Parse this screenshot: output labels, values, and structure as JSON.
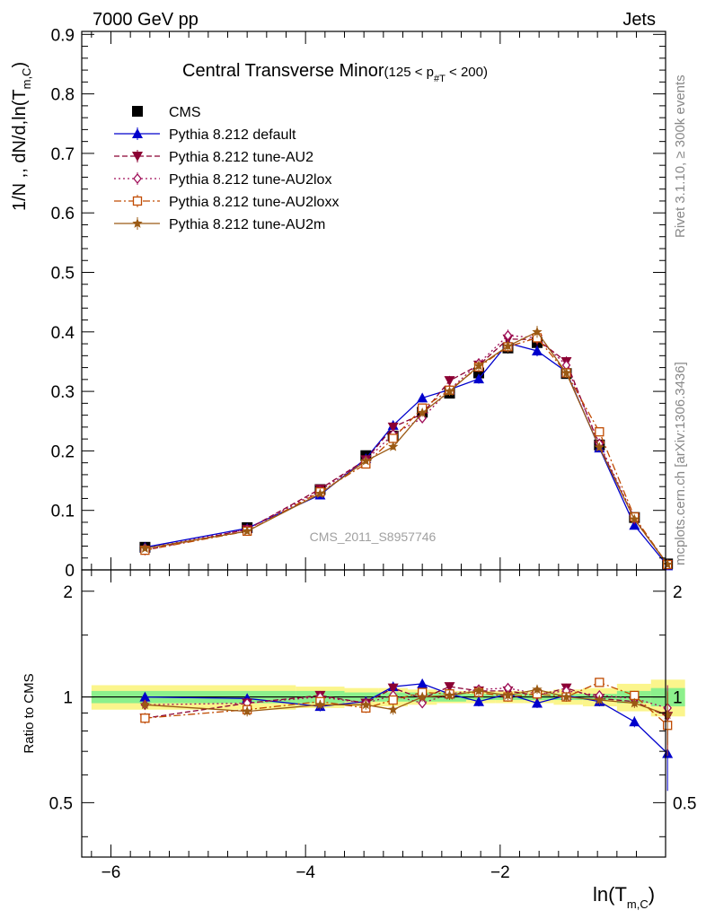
{
  "header": {
    "left": "7000 GeV pp",
    "right": "Jets"
  },
  "side_text": {
    "rivet": "Rivet 3.1.10, ≥ 300k events",
    "mcplots": "mcplots.cern.ch [arXiv:1306.3436]"
  },
  "watermark": "CMS_2011_S8957746",
  "colors": {
    "cms": "#000000",
    "default": "#0000cc",
    "au2": "#8b0033",
    "au2lox": "#a0105a",
    "au2loxx": "#c04a00",
    "au2m": "#9b5a14",
    "band_inner": "#8cf08c",
    "band_outer": "#fbf58c"
  },
  "chart_data": [
    {
      "type": "line",
      "title": "Central Transverse Minor",
      "title_cut": "(125 < p",
      "title_cut_sub": "#T",
      "title_cut_end": " < 200)",
      "ylabel": "1/N ,, dN/d,ln(T",
      "ylabel_sub": "m,C",
      "ylabel_end": ")",
      "xlim": [
        -6.3,
        -0.3
      ],
      "ylim": [
        0,
        0.905
      ],
      "yticks": [
        "0",
        "0.1",
        "0.2",
        "0.3",
        "0.4",
        "0.5",
        "0.6",
        "0.7",
        "0.8",
        "0.9"
      ],
      "x": [
        -5.65,
        -4.6,
        -3.85,
        -3.38,
        -3.1,
        -2.8,
        -2.52,
        -2.22,
        -1.92,
        -1.62,
        -1.32,
        -0.98,
        -0.62,
        -0.28
      ],
      "series": [
        {
          "name": "CMS",
          "style": "cms",
          "values": [
            0.038,
            0.071,
            0.135,
            0.192,
            0.225,
            0.265,
            0.297,
            0.331,
            0.373,
            0.382,
            0.33,
            0.21,
            0.088,
            0.01
          ]
        },
        {
          "name": "Pythia 8.212 default",
          "style": "default",
          "values": [
            0.038,
            0.07,
            0.126,
            0.187,
            0.243,
            0.289,
            0.303,
            0.321,
            0.381,
            0.368,
            0.333,
            0.205,
            0.075,
            0.007
          ]
        },
        {
          "name": "Pythia 8.212 tune-AU2",
          "style": "au2",
          "values": [
            0.033,
            0.068,
            0.136,
            0.185,
            0.24,
            0.262,
            0.318,
            0.344,
            0.388,
            0.387,
            0.35,
            0.209,
            0.085,
            0.009
          ]
        },
        {
          "name": "Pythia 8.212 tune-AU2lox",
          "style": "au2lox",
          "values": [
            0.036,
            0.068,
            0.133,
            0.184,
            0.228,
            0.255,
            0.303,
            0.347,
            0.394,
            0.39,
            0.344,
            0.212,
            0.087,
            0.009
          ]
        },
        {
          "name": "Pythia 8.212 tune-AU2loxx",
          "style": "au2loxx",
          "values": [
            0.033,
            0.065,
            0.131,
            0.178,
            0.221,
            0.272,
            0.302,
            0.341,
            0.375,
            0.39,
            0.331,
            0.232,
            0.089,
            0.009
          ]
        },
        {
          "name": "Pythia 8.212 tune-AU2m",
          "style": "au2m",
          "values": [
            0.036,
            0.065,
            0.128,
            0.183,
            0.207,
            0.264,
            0.3,
            0.343,
            0.376,
            0.4,
            0.331,
            0.206,
            0.085,
            0.009
          ]
        }
      ]
    },
    {
      "type": "line",
      "ylabel": "Ratio to CMS",
      "xlabel": "ln(T",
      "xlabel_sub": "m,C",
      "xlabel_end": ")",
      "xlim": [
        -6.3,
        -0.3
      ],
      "ylim": [
        0.35,
        2.3
      ],
      "scale": "log",
      "yticks": [
        "0.5",
        "1",
        "2"
      ],
      "xticks": [
        "−6",
        "−4",
        "−2"
      ],
      "band_edges": [
        -6.2,
        -5.1,
        -4.1,
        -3.6,
        -3.25,
        -2.95,
        -2.65,
        -2.35,
        -2.05,
        -1.75,
        -1.45,
        -1.15,
        -0.8,
        -0.45,
        -0.1
      ],
      "band_inner": [
        0.04,
        0.04,
        0.04,
        0.03,
        0.03,
        0.03,
        0.03,
        0.02,
        0.02,
        0.02,
        0.02,
        0.02,
        0.04,
        0.06
      ],
      "band_outer": [
        0.08,
        0.08,
        0.07,
        0.06,
        0.06,
        0.05,
        0.04,
        0.04,
        0.04,
        0.04,
        0.05,
        0.06,
        0.09,
        0.12
      ],
      "x": [
        -5.65,
        -4.6,
        -3.85,
        -3.38,
        -3.1,
        -2.8,
        -2.52,
        -2.22,
        -1.92,
        -1.62,
        -1.32,
        -0.98,
        -0.62,
        -0.28
      ],
      "series": [
        {
          "name": "Pythia 8.212 default",
          "style": "default",
          "values": [
            1.0,
            0.99,
            0.94,
            0.97,
            1.07,
            1.09,
            1.02,
            0.97,
            1.02,
            0.96,
            1.01,
            0.97,
            0.85,
            0.69
          ]
        },
        {
          "name": "Pythia 8.212 tune-AU2",
          "style": "au2",
          "values": [
            0.87,
            0.96,
            1.01,
            0.96,
            1.06,
            0.99,
            1.07,
            1.04,
            1.04,
            1.01,
            1.06,
            0.99,
            0.97,
            0.88
          ]
        },
        {
          "name": "Pythia 8.212 tune-AU2lox",
          "style": "au2lox",
          "values": [
            0.95,
            0.96,
            1.0,
            0.96,
            1.01,
            0.96,
            1.02,
            1.05,
            1.06,
            1.02,
            1.04,
            1.01,
            0.99,
            0.93
          ]
        },
        {
          "name": "Pythia 8.212 tune-AU2loxx",
          "style": "au2loxx",
          "values": [
            0.87,
            0.92,
            0.97,
            0.93,
            0.98,
            1.03,
            1.02,
            1.03,
            1.0,
            1.02,
            1.0,
            1.1,
            1.01,
            0.83
          ]
        },
        {
          "name": "Pythia 8.212 tune-AU2m",
          "style": "au2m",
          "values": [
            0.95,
            0.91,
            0.95,
            0.95,
            0.92,
            1.0,
            1.01,
            1.04,
            1.01,
            1.05,
            1.0,
            0.98,
            0.96,
            0.89
          ]
        }
      ]
    }
  ]
}
